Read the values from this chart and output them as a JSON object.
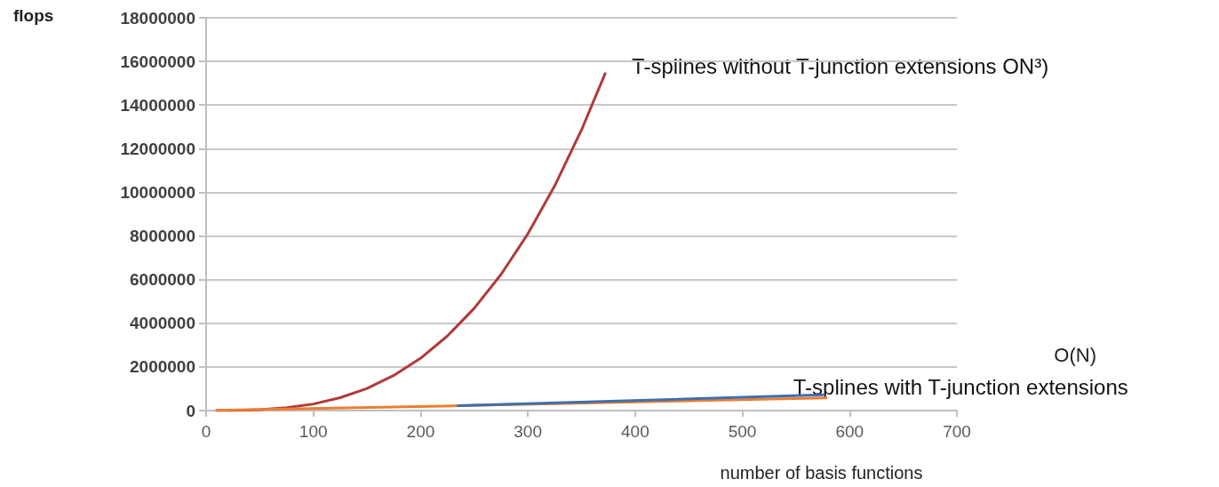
{
  "chart_data": {
    "type": "line",
    "xlabel": "number of basis functions",
    "ylabel": "flops",
    "series": [
      {
        "color": "#b03a3a",
        "x": [
          10,
          25,
          50,
          75,
          100,
          125,
          150,
          175,
          200,
          225,
          250,
          275,
          300,
          325,
          350,
          372
        ],
        "values": [
          0,
          0,
          40000,
          130000,
          300000,
          590000,
          1010000,
          1610000,
          2400000,
          3420000,
          4690000,
          6240000,
          8100000,
          10300000,
          12860000,
          15440000
        ]
      },
      {
        "color": "#ed7d31",
        "x": [
          10,
          235,
          578
        ],
        "values": [
          10000,
          220000,
          580000
        ]
      },
      {
        "color": "#3e6fb0",
        "x": [
          235,
          575
        ],
        "values": [
          220000,
          720000
        ]
      }
    ],
    "annotations": [
      {
        "text": "T-splines without T-junction extensions ON³)",
        "x": 372,
        "y": 15440000
      },
      "O(N)",
      {
        "text": "T-splines with T-junction extensions",
        "x": 578,
        "y": 580000
      }
    ],
    "xlim": [
      0,
      700
    ],
    "xticks": [
      0,
      100,
      200,
      300,
      400,
      500,
      600,
      700
    ],
    "ylim": [
      0,
      18000000
    ],
    "yticks": [
      0,
      2000000,
      4000000,
      6000000,
      8000000,
      10000000,
      12000000,
      14000000,
      16000000,
      18000000
    ],
    "grid": "y",
    "marker": "none",
    "line_style": "solid"
  }
}
